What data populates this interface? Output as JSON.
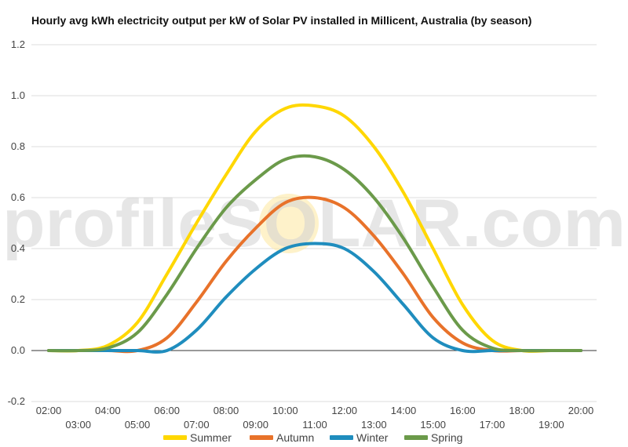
{
  "chart_data": {
    "type": "line",
    "title": "Hourly avg kWh electricity output per kW of Solar PV installed in Millicent, Australia (by season)",
    "xlabel": "",
    "ylabel": "",
    "ylim": [
      -0.2,
      1.2
    ],
    "yticks": [
      "-0.2",
      "0.0",
      "0.2",
      "0.4",
      "0.6",
      "0.8",
      "1.0",
      "1.2"
    ],
    "x": [
      "02:00",
      "03:00",
      "04:00",
      "05:00",
      "06:00",
      "07:00",
      "08:00",
      "09:00",
      "10:00",
      "11:00",
      "12:00",
      "13:00",
      "14:00",
      "15:00",
      "16:00",
      "17:00",
      "18:00",
      "19:00",
      "20:00"
    ],
    "grid": true,
    "legend": "bottom",
    "series": [
      {
        "name": "Summer",
        "color": "#ffd700",
        "values": [
          0.0,
          0.0,
          0.02,
          0.11,
          0.3,
          0.5,
          0.69,
          0.86,
          0.95,
          0.96,
          0.92,
          0.8,
          0.62,
          0.4,
          0.18,
          0.04,
          0.0,
          0.0,
          0.0
        ]
      },
      {
        "name": "Autumn",
        "color": "#e8722a",
        "values": [
          0.0,
          0.0,
          0.0,
          0.0,
          0.05,
          0.19,
          0.35,
          0.48,
          0.58,
          0.6,
          0.56,
          0.45,
          0.3,
          0.13,
          0.03,
          0.0,
          0.0,
          0.0,
          0.0
        ]
      },
      {
        "name": "Winter",
        "color": "#1f8dbe",
        "values": [
          0.0,
          0.0,
          0.0,
          0.0,
          0.0,
          0.08,
          0.21,
          0.32,
          0.4,
          0.42,
          0.4,
          0.31,
          0.18,
          0.05,
          0.0,
          0.0,
          0.0,
          0.0,
          0.0
        ]
      },
      {
        "name": "Spring",
        "color": "#6b9a4a",
        "values": [
          0.0,
          0.0,
          0.01,
          0.07,
          0.22,
          0.4,
          0.56,
          0.67,
          0.75,
          0.76,
          0.71,
          0.6,
          0.44,
          0.25,
          0.08,
          0.01,
          0.0,
          0.0,
          0.0
        ]
      }
    ]
  },
  "watermark": "profileSOLAR.com"
}
